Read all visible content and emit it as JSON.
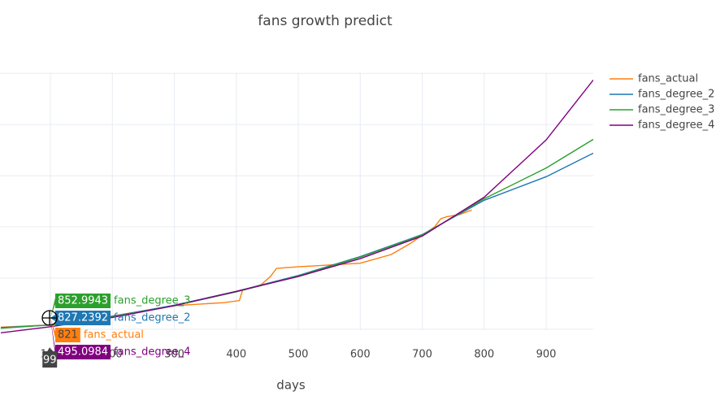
{
  "chart_data": {
    "type": "line",
    "title": "fans growth predict",
    "x_label": "days",
    "x": [
      20,
      100,
      200,
      300,
      400,
      500,
      600,
      700,
      800,
      900,
      976
    ],
    "xlim": [
      18.7,
      976
    ],
    "xticks": [
      100,
      200,
      300,
      400,
      500,
      600,
      700,
      800,
      900
    ],
    "ylim": [
      -2400,
      52400
    ],
    "yticks": [
      0,
      10000,
      20000,
      30000,
      40000,
      50000
    ],
    "grid": true,
    "legend": "top-right",
    "series": [
      {
        "name": "fans_actual",
        "color": "#ff7f0e",
        "x": [
          20,
          99,
          200,
          300,
          380,
          405,
          410,
          440,
          455,
          465,
          500,
          600,
          650,
          680,
          720,
          730,
          740,
          760,
          780
        ],
        "values": [
          400,
          821,
          2600,
          4600,
          5200,
          5600,
          7600,
          8700,
          10300,
          11900,
          12200,
          12900,
          14600,
          16700,
          20000,
          21600,
          22000,
          22400,
          23300
        ],
        "hover_value": 821
      },
      {
        "name": "fans_degree_2",
        "color": "#1f77b4",
        "values": [
          300,
          827,
          2500,
          4700,
          7400,
          10500,
          14200,
          18500,
          25200,
          29800,
          34400
        ],
        "hover_value": 827.2392
      },
      {
        "name": "fans_degree_3",
        "color": "#2ca02c",
        "values": [
          200,
          853,
          2400,
          4600,
          7300,
          10400,
          14100,
          18400,
          25500,
          31500,
          37100
        ],
        "hover_value": 852.9943
      },
      {
        "name": "fans_degree_4",
        "color": "#800080",
        "values": [
          -700,
          495,
          2300,
          4600,
          7400,
          10300,
          13800,
          18200,
          25800,
          37000,
          48700
        ],
        "hover_value": 495.0984
      }
    ],
    "hover_x": 99
  }
}
